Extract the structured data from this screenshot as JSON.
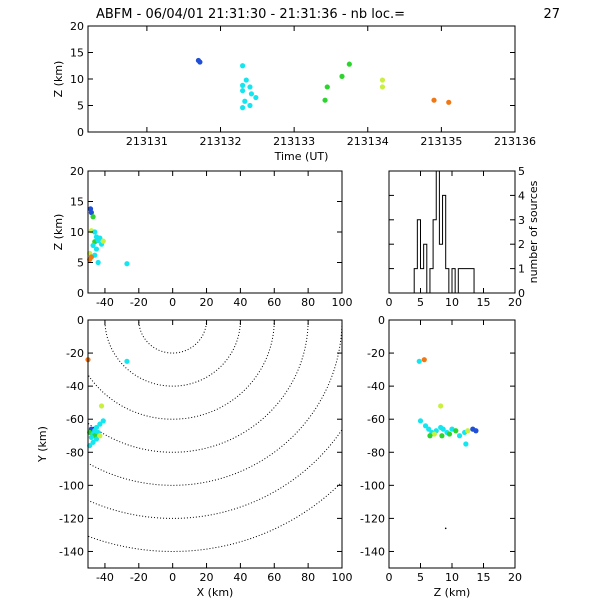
{
  "title": "ABFM - 06/04/01 21:31:30 - 21:31:36 - nb loc.=",
  "nb_loc": "27",
  "colors": {
    "dark_blue": "#1f4fd8",
    "cyan": "#14e6f0",
    "green": "#2ed42e",
    "yellow_green": "#c8f03c",
    "orange": "#f07814",
    "axis": "#000000"
  },
  "chart_data": [
    {
      "id": "time_height",
      "type": "scatter",
      "xlabel": "Time (UT)",
      "ylabel": "Z (km)",
      "xlim": [
        213130.2,
        213136
      ],
      "ylim": [
        0,
        20
      ],
      "xticks": [
        "213131",
        "213132",
        "213133",
        "213134",
        "213135",
        "213136"
      ],
      "yticks": [
        "0",
        "5",
        "10",
        "15",
        "20"
      ],
      "points": [
        {
          "x": 213131.7,
          "y": 13.5,
          "c": "dark_blue"
        },
        {
          "x": 213131.72,
          "y": 13.2,
          "c": "dark_blue"
        },
        {
          "x": 213132.3,
          "y": 12.5,
          "c": "cyan"
        },
        {
          "x": 213132.35,
          "y": 9.8,
          "c": "cyan"
        },
        {
          "x": 213132.3,
          "y": 8.8,
          "c": "cyan"
        },
        {
          "x": 213132.4,
          "y": 8.5,
          "c": "cyan"
        },
        {
          "x": 213132.3,
          "y": 7.8,
          "c": "cyan"
        },
        {
          "x": 213132.42,
          "y": 7.2,
          "c": "cyan"
        },
        {
          "x": 213132.48,
          "y": 6.5,
          "c": "cyan"
        },
        {
          "x": 213132.33,
          "y": 5.8,
          "c": "cyan"
        },
        {
          "x": 213132.4,
          "y": 5.0,
          "c": "cyan"
        },
        {
          "x": 213132.3,
          "y": 4.6,
          "c": "cyan"
        },
        {
          "x": 213133.45,
          "y": 8.5,
          "c": "green"
        },
        {
          "x": 213133.42,
          "y": 6.0,
          "c": "green"
        },
        {
          "x": 213133.65,
          "y": 10.5,
          "c": "green"
        },
        {
          "x": 213133.75,
          "y": 12.8,
          "c": "green"
        },
        {
          "x": 213134.2,
          "y": 9.8,
          "c": "yellow_green"
        },
        {
          "x": 213134.2,
          "y": 8.5,
          "c": "yellow_green"
        },
        {
          "x": 213134.9,
          "y": 6.0,
          "c": "orange"
        },
        {
          "x": 213135.1,
          "y": 5.6,
          "c": "orange"
        }
      ]
    },
    {
      "id": "x_height",
      "type": "scatter",
      "xlabel": "",
      "ylabel": "Z (km)",
      "xlim": [
        -50,
        100
      ],
      "ylim": [
        0,
        20
      ],
      "xticks": [
        "-40",
        "-20",
        "0",
        "20",
        "40",
        "60",
        "80",
        "100"
      ],
      "yticks": [
        "0",
        "5",
        "10",
        "15",
        "20"
      ],
      "points": [
        {
          "x": -48.5,
          "y": 13.8,
          "c": "dark_blue"
        },
        {
          "x": -48,
          "y": 13.2,
          "c": "dark_blue"
        },
        {
          "x": -47,
          "y": 12.5,
          "c": "green"
        },
        {
          "x": -48,
          "y": 10.2,
          "c": "yellow_green"
        },
        {
          "x": -46,
          "y": 10.0,
          "c": "cyan"
        },
        {
          "x": -45,
          "y": 9.2,
          "c": "cyan"
        },
        {
          "x": -43,
          "y": 9.0,
          "c": "cyan"
        },
        {
          "x": -46,
          "y": 8.4,
          "c": "green"
        },
        {
          "x": -44,
          "y": 8.6,
          "c": "cyan"
        },
        {
          "x": -42,
          "y": 8.0,
          "c": "cyan"
        },
        {
          "x": -41,
          "y": 8.5,
          "c": "yellow_green"
        },
        {
          "x": -47,
          "y": 7.8,
          "c": "cyan"
        },
        {
          "x": -45,
          "y": 7.2,
          "c": "cyan"
        },
        {
          "x": -49,
          "y": 6.5,
          "c": "yellow_green"
        },
        {
          "x": -46,
          "y": 6.2,
          "c": "cyan"
        },
        {
          "x": -48,
          "y": 5.9,
          "c": "orange"
        },
        {
          "x": -49,
          "y": 5.5,
          "c": "orange"
        },
        {
          "x": -44,
          "y": 5.0,
          "c": "cyan"
        },
        {
          "x": -27,
          "y": 4.8,
          "c": "cyan"
        }
      ]
    },
    {
      "id": "height_histogram",
      "type": "bar",
      "xlabel": "",
      "ylabel": "number of sources",
      "xlim": [
        0,
        20
      ],
      "ylim": [
        0,
        5
      ],
      "xticks": [
        "0",
        "5",
        "10",
        "15",
        "20"
      ],
      "yticks": [
        "0",
        "1",
        "2",
        "3",
        "4",
        "5"
      ],
      "bin_width": 0.5,
      "bins": [
        {
          "from": 0,
          "to": 4,
          "count": 0
        },
        {
          "from": 4,
          "to": 4.5,
          "count": 1
        },
        {
          "from": 4.5,
          "to": 5,
          "count": 3
        },
        {
          "from": 5,
          "to": 5.5,
          "count": 1
        },
        {
          "from": 5.5,
          "to": 6,
          "count": 2
        },
        {
          "from": 6,
          "to": 6.5,
          "count": 0
        },
        {
          "from": 6.5,
          "to": 7,
          "count": 1
        },
        {
          "from": 7,
          "to": 7.5,
          "count": 3
        },
        {
          "from": 7.5,
          "to": 8,
          "count": 5
        },
        {
          "from": 8,
          "to": 8.5,
          "count": 2
        },
        {
          "from": 8.5,
          "to": 9,
          "count": 4
        },
        {
          "from": 9,
          "to": 9.5,
          "count": 1
        },
        {
          "from": 9.5,
          "to": 10,
          "count": 0
        },
        {
          "from": 10,
          "to": 10.5,
          "count": 1
        },
        {
          "from": 10.5,
          "to": 11,
          "count": 0
        },
        {
          "from": 11,
          "to": 12,
          "count": 1
        },
        {
          "from": 12,
          "to": 13.5,
          "count": 1
        },
        {
          "from": 13.5,
          "to": 20,
          "count": 0
        }
      ]
    },
    {
      "id": "x_y_map",
      "type": "scatter",
      "xlabel": "X (km)",
      "ylabel": "Y (km)",
      "xlim": [
        -50,
        100
      ],
      "ylim": [
        -150,
        0
      ],
      "xticks": [
        "-40",
        "-20",
        "0",
        "20",
        "40",
        "60",
        "80",
        "100"
      ],
      "yticks": [
        "-140",
        "-120",
        "-100",
        "-80",
        "-60",
        "-40",
        "-20",
        "0"
      ],
      "range_rings": {
        "center": [
          0,
          0
        ],
        "radii": [
          20,
          40,
          60,
          80,
          100,
          120,
          140
        ]
      },
      "points": [
        {
          "x": -50,
          "y": -24,
          "c": "orange"
        },
        {
          "x": -27,
          "y": -25,
          "c": "cyan"
        },
        {
          "x": -42,
          "y": -52,
          "c": "yellow_green"
        },
        {
          "x": -41,
          "y": -61,
          "c": "cyan"
        },
        {
          "x": -43,
          "y": -63,
          "c": "cyan"
        },
        {
          "x": -45,
          "y": -65,
          "c": "cyan"
        },
        {
          "x": -48,
          "y": -66,
          "c": "dark_blue"
        },
        {
          "x": -46,
          "y": -67,
          "c": "cyan"
        },
        {
          "x": -49,
          "y": -68,
          "c": "green"
        },
        {
          "x": -47,
          "y": -69,
          "c": "cyan"
        },
        {
          "x": -44,
          "y": -68,
          "c": "cyan"
        },
        {
          "x": -46,
          "y": -70,
          "c": "green"
        },
        {
          "x": -48,
          "y": -71,
          "c": "cyan"
        },
        {
          "x": -45,
          "y": -72,
          "c": "cyan"
        },
        {
          "x": -47,
          "y": -74,
          "c": "cyan"
        },
        {
          "x": -43,
          "y": -70,
          "c": "yellow_green"
        },
        {
          "x": -49,
          "y": -76,
          "c": "cyan"
        }
      ]
    },
    {
      "id": "height_y_map",
      "type": "scatter",
      "xlabel": "Z (km)",
      "ylabel": "",
      "xlim": [
        0,
        20
      ],
      "ylim": [
        -150,
        0
      ],
      "xticks": [
        "0",
        "5",
        "10",
        "15",
        "20"
      ],
      "yticks": [
        "-140",
        "-120",
        "-100",
        "-80",
        "-60",
        "-40",
        "-20",
        "0"
      ],
      "points": [
        {
          "x": 4.8,
          "y": -25,
          "c": "cyan"
        },
        {
          "x": 5.6,
          "y": -24,
          "c": "orange"
        },
        {
          "x": 8.2,
          "y": -52,
          "c": "yellow_green"
        },
        {
          "x": 5.0,
          "y": -61,
          "c": "cyan"
        },
        {
          "x": 5.8,
          "y": -64,
          "c": "cyan"
        },
        {
          "x": 6.3,
          "y": -66,
          "c": "cyan"
        },
        {
          "x": 6.8,
          "y": -68,
          "c": "cyan"
        },
        {
          "x": 7.5,
          "y": -67,
          "c": "cyan"
        },
        {
          "x": 8.2,
          "y": -65,
          "c": "cyan"
        },
        {
          "x": 8.6,
          "y": -66,
          "c": "cyan"
        },
        {
          "x": 8.4,
          "y": -70,
          "c": "green"
        },
        {
          "x": 9.2,
          "y": -68,
          "c": "cyan"
        },
        {
          "x": 9.6,
          "y": -69,
          "c": "green"
        },
        {
          "x": 10.0,
          "y": -66,
          "c": "cyan"
        },
        {
          "x": 10.6,
          "y": -67,
          "c": "green"
        },
        {
          "x": 11.2,
          "y": -70,
          "c": "cyan"
        },
        {
          "x": 12.0,
          "y": -68,
          "c": "cyan"
        },
        {
          "x": 12.5,
          "y": -67,
          "c": "yellow_green"
        },
        {
          "x": 13.3,
          "y": -66,
          "c": "dark_blue"
        },
        {
          "x": 13.8,
          "y": -67,
          "c": "dark_blue"
        },
        {
          "x": 7.2,
          "y": -69,
          "c": "yellow_green"
        },
        {
          "x": 6.5,
          "y": -70,
          "c": "green"
        },
        {
          "x": 12.2,
          "y": -75,
          "c": "cyan"
        },
        {
          "x": 9.0,
          "y": -126,
          "c": "axis"
        }
      ]
    }
  ]
}
